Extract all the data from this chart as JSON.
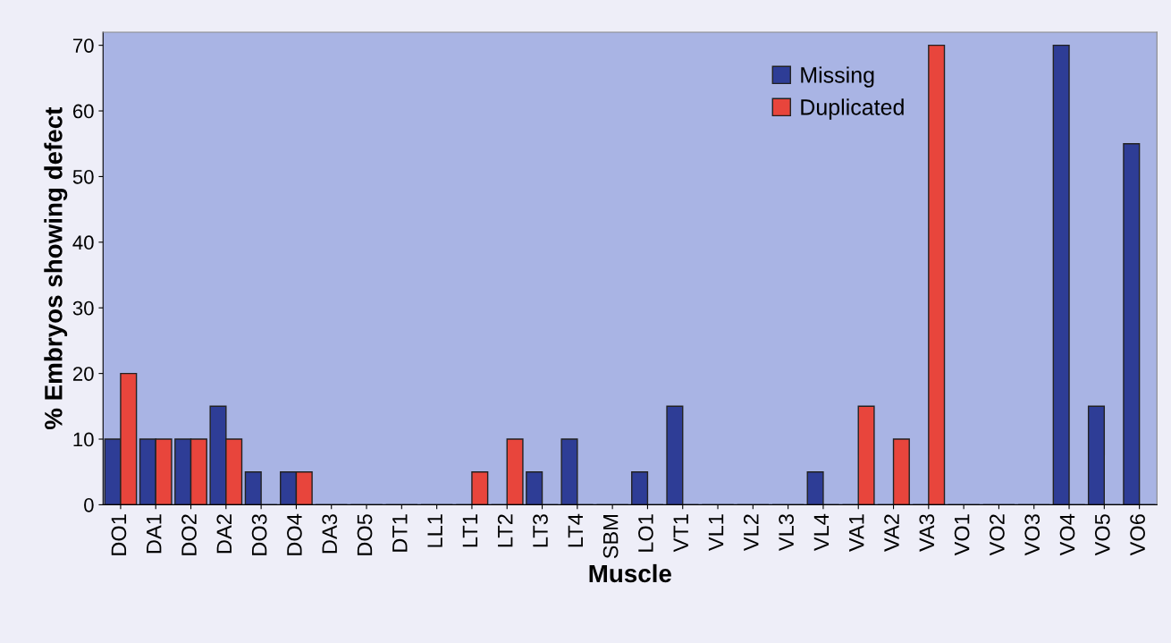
{
  "chart_data": {
    "type": "bar",
    "xlabel": "Muscle",
    "ylabel": "% Embryos showing defect",
    "categories": [
      "DO1",
      "DA1",
      "DO2",
      "DA2",
      "DO3",
      "DO4",
      "DA3",
      "DO5",
      "DT1",
      "LL1",
      "LT1",
      "LT2",
      "LT3",
      "LT4",
      "SBM",
      "LO1",
      "VT1",
      "VL1",
      "VL2",
      "VL3",
      "VL4",
      "VA1",
      "VA2",
      "VA3",
      "VO1",
      "VO2",
      "VO3",
      "VO4",
      "VO5",
      "VO6"
    ],
    "series": [
      {
        "name": "Missing",
        "color": "#2e3d96",
        "values": [
          10,
          10,
          10,
          15,
          5,
          5,
          0,
          0,
          0,
          0,
          0,
          0,
          5,
          10,
          0,
          5,
          15,
          0,
          0,
          0,
          5,
          0,
          0,
          0,
          0,
          0,
          0,
          70,
          15,
          55
        ]
      },
      {
        "name": "Duplicated",
        "color": "#e8453c",
        "values": [
          20,
          10,
          10,
          10,
          0,
          5,
          0,
          0,
          0,
          0,
          5,
          10,
          0,
          0,
          0,
          0,
          0,
          0,
          0,
          0,
          0,
          15,
          10,
          70,
          0,
          0,
          0,
          0,
          0,
          0
        ]
      }
    ],
    "ylim": [
      0,
      72
    ],
    "yticks": [
      0,
      10,
      20,
      30,
      40,
      50,
      60,
      70
    ],
    "grid": false,
    "legend": "top right"
  }
}
